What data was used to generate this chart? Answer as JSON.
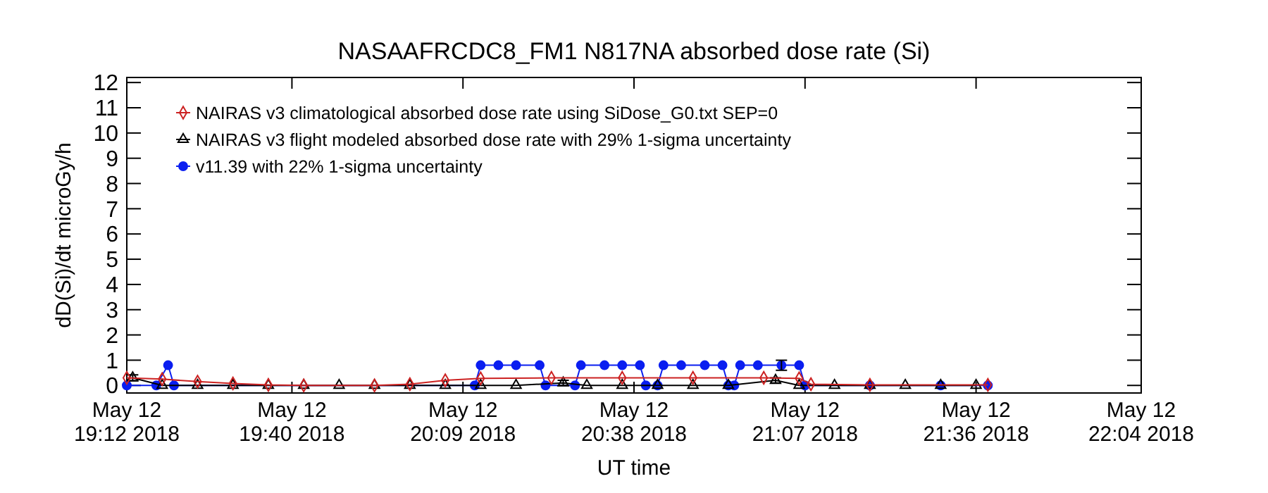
{
  "chart_data": {
    "type": "line",
    "title": "NASAAFRCDC8_FM1   N817NA absorbed dose rate (Si)",
    "xlabel": "UT time",
    "ylabel": "dD(Si)/dt microGy/h",
    "xlim": [
      "2018-05-12T19:12",
      "2018-05-12T22:04"
    ],
    "ylim": [
      -0.3,
      12.2
    ],
    "xticks": [
      {
        "value": "2018-05-12T19:12",
        "label": "May 12\n19:12 2018"
      },
      {
        "value": "2018-05-12T19:40",
        "label": "May 12\n19:40 2018"
      },
      {
        "value": "2018-05-12T20:09",
        "label": "May 12\n20:09 2018"
      },
      {
        "value": "2018-05-12T20:38",
        "label": "May 12\n20:38 2018"
      },
      {
        "value": "2018-05-12T21:07",
        "label": "May 12\n21:07 2018"
      },
      {
        "value": "2018-05-12T21:36",
        "label": "May 12\n21:36 2018"
      },
      {
        "value": "2018-05-12T22:04",
        "label": "May 12\n22:04 2018"
      }
    ],
    "yticks": [
      0,
      1,
      2,
      3,
      4,
      5,
      6,
      7,
      8,
      9,
      10,
      11,
      12
    ],
    "legend": "top left",
    "grid": false,
    "series": [
      {
        "name": "NAIRAS v3 climatological absorbed dose rate using SiDose_G0.txt SEP=0",
        "color": "#cc2222",
        "marker": "diamond",
        "x": [
          "2018-05-12T19:12",
          "2018-05-12T19:18",
          "2018-05-12T19:24",
          "2018-05-12T19:30",
          "2018-05-12T19:36",
          "2018-05-12T19:42",
          "2018-05-12T19:54",
          "2018-05-12T20:00",
          "2018-05-12T20:06",
          "2018-05-12T20:12",
          "2018-05-12T20:24",
          "2018-05-12T20:36",
          "2018-05-12T20:48",
          "2018-05-12T21:00",
          "2018-05-12T21:06",
          "2018-05-12T21:08",
          "2018-05-12T21:18",
          "2018-05-12T21:38"
        ],
        "values": [
          0.3,
          0.25,
          0.15,
          0.08,
          0.02,
          0,
          0,
          0.05,
          0.2,
          0.28,
          0.3,
          0.3,
          0.3,
          0.3,
          0.28,
          0.05,
          0.02,
          0.02
        ]
      },
      {
        "name": "NAIRAS v3 flight modeled absorbed dose rate with 29% 1-sigma uncertainty",
        "color": "#000000",
        "marker": "triangle",
        "x": [
          "2018-05-12T19:13",
          "2018-05-12T19:18",
          "2018-05-12T19:24",
          "2018-05-12T19:30",
          "2018-05-12T19:36",
          "2018-05-12T19:42",
          "2018-05-12T19:48",
          "2018-05-12T19:54",
          "2018-05-12T20:00",
          "2018-05-12T20:06",
          "2018-05-12T20:12",
          "2018-05-12T20:18",
          "2018-05-12T20:26",
          "2018-05-12T20:30",
          "2018-05-12T20:36",
          "2018-05-12T20:42",
          "2018-05-12T20:48",
          "2018-05-12T20:54",
          "2018-05-12T21:02",
          "2018-05-12T21:06",
          "2018-05-12T21:12",
          "2018-05-12T21:18",
          "2018-05-12T21:24",
          "2018-05-12T21:30",
          "2018-05-12T21:36"
        ],
        "values": [
          0.3,
          0,
          0,
          0,
          0,
          0,
          0,
          0,
          0,
          0,
          0,
          0,
          0.1,
          0,
          0,
          0,
          0,
          0,
          0.2,
          0,
          0,
          0,
          0,
          0,
          0
        ],
        "errors": [
          0.12,
          null,
          null,
          null,
          null,
          null,
          null,
          null,
          null,
          null,
          null,
          null,
          0.1,
          null,
          null,
          null,
          null,
          null,
          0.1,
          null,
          null,
          null,
          null,
          null,
          null
        ]
      },
      {
        "name": "v11.39 with 22% 1-sigma uncertainty",
        "color": "#0a1ef0",
        "marker": "circle",
        "x": [
          "2018-05-12T19:12",
          "2018-05-12T19:17",
          "2018-05-12T19:19",
          "2018-05-12T19:20",
          "2018-05-12T20:11",
          "2018-05-12T20:12",
          "2018-05-12T20:15",
          "2018-05-12T20:18",
          "2018-05-12T20:22",
          "2018-05-12T20:23",
          "2018-05-12T20:28",
          "2018-05-12T20:29",
          "2018-05-12T20:33",
          "2018-05-12T20:36",
          "2018-05-12T20:39",
          "2018-05-12T20:40",
          "2018-05-12T20:42",
          "2018-05-12T20:43",
          "2018-05-12T20:46",
          "2018-05-12T20:50",
          "2018-05-12T20:53",
          "2018-05-12T20:54",
          "2018-05-12T20:55",
          "2018-05-12T20:56",
          "2018-05-12T20:59",
          "2018-05-12T21:03",
          "2018-05-12T21:06",
          "2018-05-12T21:07",
          "2018-05-12T21:18",
          "2018-05-12T21:30",
          "2018-05-12T21:38"
        ],
        "values": [
          0,
          0,
          0.8,
          0,
          0,
          0.8,
          0.8,
          0.8,
          0.8,
          0,
          0,
          0.8,
          0.8,
          0.8,
          0.8,
          0,
          0,
          0.8,
          0.8,
          0.8,
          0.8,
          0,
          0,
          0.8,
          0.8,
          0.8,
          0.8,
          0,
          0,
          0,
          0
        ],
        "errors": [
          null,
          null,
          null,
          null,
          null,
          null,
          null,
          null,
          null,
          null,
          null,
          null,
          null,
          null,
          null,
          null,
          null,
          null,
          null,
          null,
          null,
          null,
          null,
          null,
          null,
          0.2,
          null,
          null,
          null,
          null,
          null
        ]
      }
    ]
  }
}
